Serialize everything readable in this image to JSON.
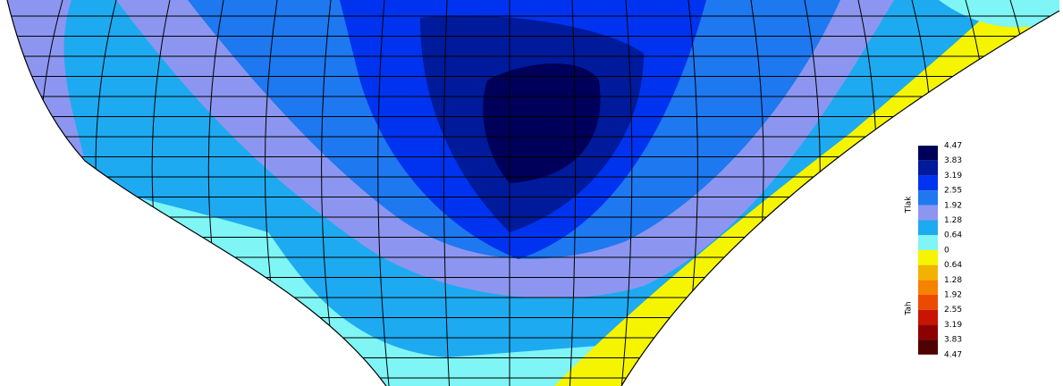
{
  "legend": {
    "upper_label": "Tlak",
    "lower_label": "Tah",
    "labels": [
      "4.47",
      "3.83",
      "3.19",
      "2.55",
      "1.92",
      "1.28",
      "0.64",
      "0",
      "0.64",
      "1.28",
      "1.92",
      "2.55",
      "3.19",
      "3.83",
      "4.47"
    ],
    "colors": [
      "#00005a",
      "#001a9c",
      "#0033f0",
      "#1e78f0",
      "#8c96f0",
      "#1eaaf0",
      "#7ff5f5",
      "#f5f500",
      "#f0b400",
      "#f58200",
      "#eb4b00",
      "#c81400",
      "#8c0000",
      "#500000"
    ]
  }
}
